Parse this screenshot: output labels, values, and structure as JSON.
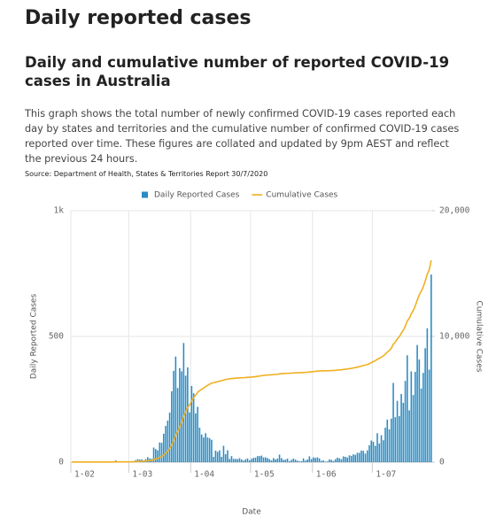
{
  "header": {
    "title": "Daily reported cases"
  },
  "article": {
    "heading": "Daily and cumulative number of reported COVID-19 cases in Australia",
    "description": "This graph shows the total number of newly confirmed COVID-19 cases reported each day by states and territories and the cumulative number of confirmed COVID-19 cases reported over time. These figures are collated and updated by 9pm AEST and reflect the previous 24 hours.",
    "source": "Source: Department of Health, States & Territories Report 30/7/2020"
  },
  "chart_data": {
    "type": "bar",
    "x_label": "Date",
    "y_label": "Daily Reported Cases",
    "y2_label": "Cumulative Cases",
    "categories": [
      "1-02",
      null,
      null,
      null,
      null,
      null,
      null,
      null,
      null,
      null,
      null,
      null,
      null,
      null,
      null,
      null,
      null,
      null,
      null,
      null,
      null,
      null,
      null,
      null,
      null,
      null,
      null,
      null,
      null,
      "1-03",
      null,
      null,
      null,
      null,
      null,
      null,
      null,
      null,
      null,
      null,
      null,
      null,
      null,
      null,
      null,
      null,
      null,
      null,
      null,
      null,
      null,
      null,
      null,
      null,
      null,
      null,
      null,
      null,
      null,
      null,
      "1-04",
      null,
      null,
      null,
      null,
      null,
      null,
      null,
      null,
      null,
      null,
      null,
      null,
      null,
      null,
      null,
      null,
      null,
      null,
      null,
      null,
      null,
      null,
      null,
      null,
      null,
      null,
      null,
      null,
      null,
      "1-05",
      null,
      null,
      null,
      null,
      null,
      null,
      null,
      null,
      null,
      null,
      null,
      null,
      null,
      null,
      null,
      null,
      null,
      null,
      null,
      null,
      null,
      null,
      null,
      null,
      null,
      null,
      null,
      null,
      null,
      null,
      "1-06",
      null,
      null,
      null,
      null,
      null,
      null,
      null,
      null,
      null,
      null,
      null,
      null,
      null,
      null,
      null,
      null,
      null,
      null,
      null,
      null,
      null,
      null,
      null,
      null,
      null,
      null,
      null,
      null,
      null,
      "1-07",
      null,
      null,
      null,
      null,
      null,
      null,
      null,
      null,
      null,
      null,
      null,
      null,
      null,
      null,
      null,
      null,
      null,
      null,
      null,
      null,
      null,
      null,
      null,
      null,
      null,
      null,
      null,
      null,
      null
    ],
    "series": [
      {
        "name": "Daily Reported Cases",
        "type": "bar",
        "color": "#2b8cc4",
        "values": [
          0,
          0,
          0,
          1,
          1,
          0,
          0,
          1,
          0,
          0,
          0,
          0,
          0,
          0,
          0,
          0,
          0,
          0,
          0,
          0,
          0,
          0,
          7,
          0,
          0,
          0,
          1,
          0,
          2,
          2,
          2,
          4,
          8,
          12,
          10,
          11,
          6,
          12,
          20,
          15,
          13,
          58,
          52,
          47,
          78,
          77,
          113,
          144,
          165,
          197,
          282,
          363,
          420,
          295,
          374,
          361,
          474,
          344,
          377,
          198,
          303,
          274,
          194,
          220,
          137,
          110,
          98,
          115,
          98,
          95,
          89,
          21,
          46,
          41,
          47,
          21,
          65,
          32,
          47,
          13,
          24,
          13,
          13,
          12,
          16,
          11,
          6,
          11,
          15,
          7,
          13,
          17,
          18,
          24,
          24,
          26,
          19,
          19,
          16,
          12,
          7,
          16,
          11,
          14,
          30,
          16,
          9,
          10,
          14,
          4,
          9,
          14,
          10,
          6,
          3,
          4,
          15,
          6,
          11,
          23,
          12,
          19,
          17,
          19,
          15,
          5,
          7,
          2,
          3,
          11,
          9,
          5,
          12,
          18,
          15,
          12,
          23,
          21,
          18,
          27,
          25,
          31,
          29,
          37,
          37,
          46,
          45,
          34,
          47,
          67,
          86,
          81,
          65,
          115,
          74,
          107,
          87,
          137,
          169,
          131,
          173,
          315,
          179,
          244,
          183,
          271,
          236,
          323,
          425,
          206,
          361,
          267,
          359,
          466,
          408,
          293,
          355,
          453,
          532,
          368,
          746
        ]
      },
      {
        "name": "Cumulative Cases",
        "type": "line",
        "axis": "y2",
        "color": "#f0b020",
        "values": [
          12,
          12,
          12,
          13,
          14,
          14,
          14,
          15,
          15,
          15,
          15,
          15,
          15,
          15,
          15,
          15,
          15,
          15,
          15,
          15,
          15,
          15,
          22,
          22,
          22,
          22,
          23,
          23,
          25,
          27,
          29,
          33,
          41,
          53,
          63,
          74,
          80,
          92,
          112,
          127,
          140,
          198,
          250,
          297,
          375,
          452,
          565,
          709,
          874,
          1071,
          1353,
          1716,
          2136,
          2431,
          2805,
          3166,
          3640,
          3984,
          4361,
          4559,
          4862,
          5136,
          5330,
          5550,
          5687,
          5797,
          5895,
          6010,
          6108,
          6203,
          6292,
          6313,
          6359,
          6400,
          6447,
          6468,
          6533,
          6565,
          6612,
          6625,
          6649,
          6662,
          6675,
          6687,
          6703,
          6714,
          6720,
          6731,
          6746,
          6753,
          6766,
          6783,
          6801,
          6825,
          6849,
          6875,
          6894,
          6913,
          6929,
          6941,
          6948,
          6964,
          6975,
          6989,
          7019,
          7035,
          7044,
          7054,
          7068,
          7072,
          7081,
          7095,
          7105,
          7111,
          7114,
          7118,
          7133,
          7139,
          7150,
          7173,
          7185,
          7204,
          7221,
          7240,
          7255,
          7260,
          7267,
          7265,
          7265,
          7276,
          7285,
          7290,
          7302,
          7320,
          7335,
          7347,
          7370,
          7391,
          7409,
          7436,
          7461,
          7492,
          7521,
          7558,
          7595,
          7641,
          7686,
          7720,
          7767,
          7834,
          7920,
          8001,
          8066,
          8181,
          8255,
          8362,
          8449,
          8586,
          8755,
          8886,
          9059,
          9374,
          9553,
          9797,
          9980,
          10251,
          10487,
          10810,
          11235,
          11441,
          11802,
          12069,
          12428,
          12894,
          13302,
          13595,
          13950,
          14403,
          14935,
          15303,
          16049
        ]
      }
    ],
    "ylim": [
      0,
      1000
    ],
    "yticks": [
      0,
      500,
      {
        "value": 1000,
        "label": "1k"
      }
    ],
    "y2lim": [
      0,
      20000
    ],
    "y2ticks": [
      0,
      {
        "value": 10000,
        "label": "10,000"
      },
      {
        "value": 20000,
        "label": "20,000"
      }
    ],
    "grid": true,
    "legend": "top"
  }
}
